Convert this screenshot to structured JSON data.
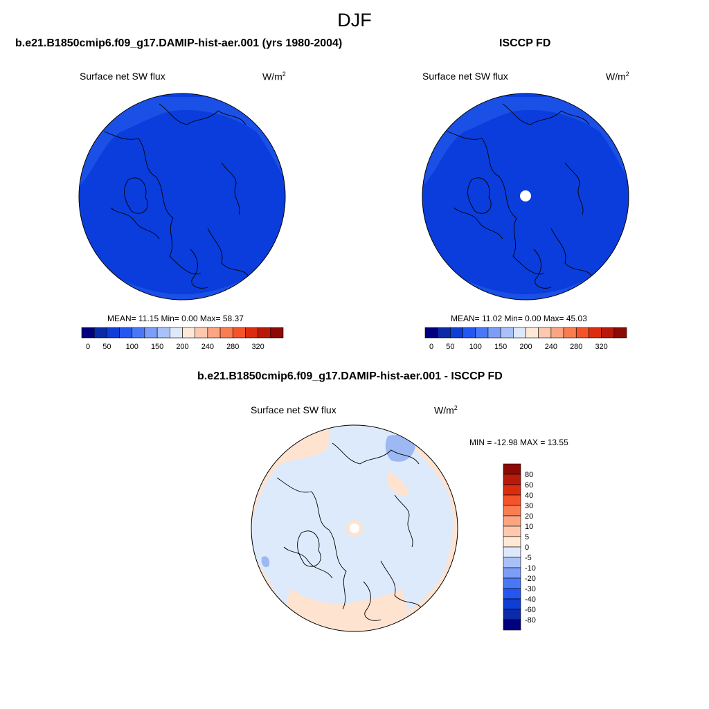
{
  "suptitle": "DJF",
  "panels": [
    {
      "title": "b.e21.B1850cmip6.f09_g17.DAMIP-hist-aer.001 (yrs 1980-2004)",
      "left_label": "Surface net SW flux",
      "units": "W/m",
      "units_sup": "2",
      "stats": "MEAN=  11.15  Min=    0.00  Max=  58.37",
      "fill": "#0a3ddc",
      "rim_fill": "#1a50e6"
    },
    {
      "title": "ISCCP FD",
      "left_label": "Surface net SW flux",
      "units": "W/m",
      "units_sup": "2",
      "stats": "MEAN=  11.02  Min=    0.00  Max=  45.03",
      "fill": "#0a3ddc",
      "rim_fill": "#1a50e6"
    }
  ],
  "colorbar_top": {
    "colors": [
      "#00007f",
      "#0a2aa8",
      "#0f3ed6",
      "#2457f0",
      "#4a78f5",
      "#7c9ef7",
      "#a9c1f8",
      "#dde9fb",
      "#ffe8d6",
      "#fdc8ad",
      "#fba583",
      "#fa7d52",
      "#f4532b",
      "#dc2c10",
      "#b8190b",
      "#8b0a05"
    ],
    "tick_labels": [
      "0",
      "50",
      "100",
      "150",
      "200",
      "240",
      "280",
      "320"
    ]
  },
  "diff_panel": {
    "title": "b.e21.B1850cmip6.f09_g17.DAMIP-hist-aer.001 - ISCCP FD",
    "left_label": "Surface net SW flux",
    "units": "W/m",
    "units_sup": "2",
    "stats": "MIN = -12.98 MAX =  13.55",
    "base_fill": "#ddeafc",
    "warm_fill": "#fde3d0",
    "cool_fill": "#9db8f3"
  },
  "colorbar_diff": {
    "colors": [
      "#8b0a05",
      "#b8190b",
      "#dc2c10",
      "#f4532b",
      "#fa7d52",
      "#fba583",
      "#fdc8ad",
      "#ffe8d6",
      "#dde9fb",
      "#a9c1f8",
      "#7c9ef7",
      "#4a78f5",
      "#2457f0",
      "#0f3ed6",
      "#0a2aa8",
      "#00007f"
    ],
    "tick_labels": [
      "80",
      "60",
      "40",
      "30",
      "20",
      "10",
      "5",
      "0",
      "-5",
      "-10",
      "-20",
      "-30",
      "-40",
      "-60",
      "-80"
    ]
  }
}
